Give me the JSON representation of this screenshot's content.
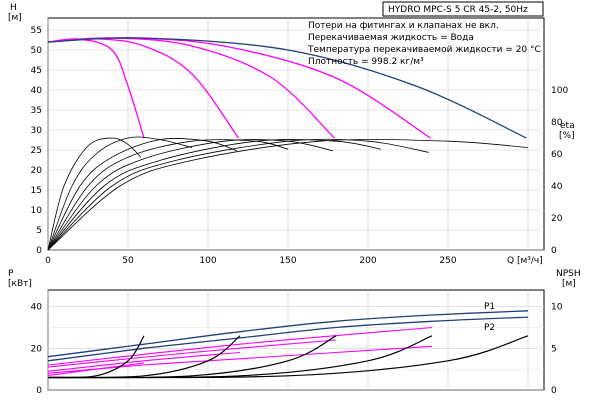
{
  "chart_data": {
    "type": "line",
    "title": "HYDRO MPC-S 5 CR 45-2, 50Hz",
    "annotations": [
      "Потери на фитингах и клапанах не вкл.",
      "Перекачиваемая жидкость = Вода",
      "Температура перекачиваемой жидкости = 20 °C",
      "Плотность = 998.2 кг/м³"
    ],
    "x": {
      "label": "Q [м³/ч]",
      "ticks": [
        0,
        50,
        100,
        150,
        200,
        250
      ],
      "range": [
        0,
        310
      ]
    },
    "head_panel": {
      "y_left": {
        "label_top": "H",
        "label_unit": "[м]",
        "ticks": [
          0,
          5,
          10,
          15,
          20,
          25,
          30,
          35,
          40,
          45,
          50,
          55
        ],
        "range": [
          0,
          58
        ]
      },
      "y_right": {
        "label_top": "eta",
        "label_unit": "[%]",
        "ticks": [
          0,
          20,
          40,
          60,
          80,
          100
        ],
        "range": [
          0,
          145
        ]
      },
      "series": [
        {
          "color": "#ff00ff",
          "points": [
            [
              0,
              52
            ],
            [
              20,
              52.7
            ],
            [
              40,
              50
            ],
            [
              50,
              41
            ],
            [
              60,
              28
            ]
          ]
        },
        {
          "color": "#ff00ff",
          "points": [
            [
              0,
              52
            ],
            [
              30,
              52.8
            ],
            [
              60,
              51
            ],
            [
              90,
              44
            ],
            [
              119,
              28
            ]
          ]
        },
        {
          "color": "#ff00ff",
          "points": [
            [
              0,
              52
            ],
            [
              40,
              53
            ],
            [
              90,
              51
            ],
            [
              140,
              43
            ],
            [
              179,
              28
            ]
          ]
        },
        {
          "color": "#ff00ff",
          "points": [
            [
              0,
              52
            ],
            [
              50,
              53
            ],
            [
              110,
              51
            ],
            [
              180,
              43
            ],
            [
              239,
              28
            ]
          ]
        },
        {
          "color": "#1f3f7a",
          "points": [
            [
              0,
              52
            ],
            [
              60,
              53
            ],
            [
              150,
              50
            ],
            [
              230,
              41
            ],
            [
              299,
              28
            ]
          ]
        }
      ],
      "eta_curves": [
        {
          "points": [
            [
              0,
              0
            ],
            [
              10,
              40
            ],
            [
              25,
              65
            ],
            [
              40,
              70
            ],
            [
              50,
              66
            ],
            [
              58,
              58
            ]
          ]
        },
        {
          "points": [
            [
              0,
              0
            ],
            [
              15,
              40
            ],
            [
              30,
              60
            ],
            [
              50,
              70
            ],
            [
              70,
              69
            ],
            [
              90,
              64
            ]
          ]
        },
        {
          "points": [
            [
              0,
              0
            ],
            [
              20,
              40
            ],
            [
              40,
              58
            ],
            [
              70,
              69
            ],
            [
              100,
              68
            ],
            [
              118,
              62
            ]
          ]
        },
        {
          "points": [
            [
              0,
              0
            ],
            [
              25,
              40
            ],
            [
              50,
              58
            ],
            [
              90,
              68
            ],
            [
              130,
              68
            ],
            [
              150,
              63
            ]
          ]
        },
        {
          "points": [
            [
              0,
              0
            ],
            [
              30,
              40
            ],
            [
              60,
              57
            ],
            [
              110,
              68
            ],
            [
              150,
              68
            ],
            [
              178,
              62
            ]
          ]
        },
        {
          "points": [
            [
              0,
              0
            ],
            [
              35,
              40
            ],
            [
              70,
              56
            ],
            [
              130,
              68
            ],
            [
              180,
              68
            ],
            [
              208,
              63
            ]
          ]
        },
        {
          "points": [
            [
              0,
              0
            ],
            [
              40,
              40
            ],
            [
              80,
              56
            ],
            [
              150,
              68
            ],
            [
              200,
              68
            ],
            [
              238,
              61
            ]
          ]
        },
        {
          "points": [
            [
              0,
              0
            ],
            [
              45,
              40
            ],
            [
              90,
              56
            ],
            [
              170,
              68
            ],
            [
              250,
              68
            ],
            [
              300,
              64
            ]
          ]
        }
      ]
    },
    "power_panel": {
      "y_left": {
        "label_top": "P",
        "label_unit": "[кВт]",
        "ticks": [
          0,
          20,
          40
        ],
        "range": [
          0,
          48
        ]
      },
      "y_right": {
        "label_top": "NPSH",
        "label_unit": "[м]",
        "ticks": [
          0,
          5,
          10
        ],
        "range": [
          0,
          12
        ]
      },
      "p1_label": "P1",
      "p2_label": "P2",
      "p1_curve": {
        "color": "#1f3f7a",
        "points": [
          [
            0,
            16
          ],
          [
            60,
            22
          ],
          [
            120,
            28
          ],
          [
            180,
            33
          ],
          [
            240,
            36
          ],
          [
            300,
            38
          ]
        ]
      },
      "p2_curve": {
        "color": "#1f3f7a",
        "points": [
          [
            0,
            14
          ],
          [
            60,
            20
          ],
          [
            120,
            25
          ],
          [
            180,
            30
          ],
          [
            240,
            33
          ],
          [
            300,
            35
          ]
        ]
      },
      "magenta_curves": [
        {
          "points": [
            [
              0,
              7
            ],
            [
              30,
              10
            ],
            [
              60,
              13
            ]
          ]
        },
        {
          "points": [
            [
              0,
              9
            ],
            [
              60,
              14
            ],
            [
              120,
              18
            ]
          ]
        },
        {
          "points": [
            [
              0,
              11
            ],
            [
              90,
              18
            ],
            [
              180,
              24
            ]
          ]
        },
        {
          "points": [
            [
              0,
              12
            ],
            [
              120,
              22
            ],
            [
              240,
              30
            ]
          ]
        },
        {
          "points": [
            [
              0,
              8
            ],
            [
              60,
              12
            ],
            [
              120,
              15
            ],
            [
              180,
              18
            ],
            [
              240,
              21
            ]
          ]
        }
      ],
      "npsh_curves": [
        {
          "points": [
            [
              0,
              1.5
            ],
            [
              30,
              1.7
            ],
            [
              50,
              3.5
            ],
            [
              60,
              6.5
            ]
          ]
        },
        {
          "points": [
            [
              0,
              1.5
            ],
            [
              60,
              1.7
            ],
            [
              100,
              3.5
            ],
            [
              120,
              6.5
            ]
          ]
        },
        {
          "points": [
            [
              0,
              1.5
            ],
            [
              90,
              1.7
            ],
            [
              150,
              3.5
            ],
            [
              180,
              6.5
            ]
          ]
        },
        {
          "points": [
            [
              0,
              1.5
            ],
            [
              120,
              1.7
            ],
            [
              200,
              3.5
            ],
            [
              240,
              6.5
            ]
          ]
        },
        {
          "points": [
            [
              0,
              1.5
            ],
            [
              150,
              1.7
            ],
            [
              250,
              3.5
            ],
            [
              300,
              6.5
            ]
          ]
        }
      ]
    },
    "grid": true
  }
}
